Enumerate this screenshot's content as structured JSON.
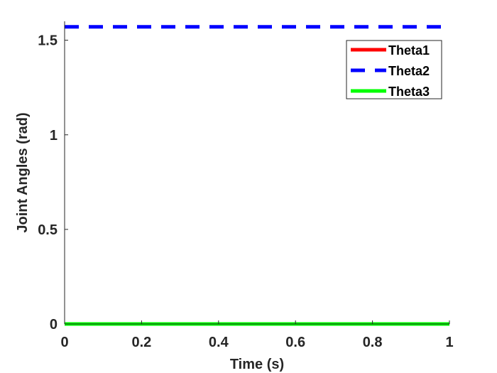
{
  "chart_data": {
    "type": "line",
    "xlabel": "Time (s)",
    "ylabel": "Joint Angles (rad)",
    "xlim": [
      0,
      1
    ],
    "ylim": [
      0,
      1.6
    ],
    "xticks": [
      0,
      0.2,
      0.4,
      0.6,
      0.8,
      1
    ],
    "xtick_labels": [
      "0",
      "0.2",
      "0.4",
      "0.6",
      "0.8",
      "1"
    ],
    "yticks": [
      0,
      0.5,
      1,
      1.5
    ],
    "ytick_labels": [
      "0",
      "0.5",
      "1",
      "1.5"
    ],
    "grid": false,
    "legend_position": "top-right",
    "series": [
      {
        "name": "Theta1",
        "color": "#ff0000",
        "style": "solid",
        "x": [
          0,
          1
        ],
        "y": [
          0,
          0
        ]
      },
      {
        "name": "Theta2",
        "color": "#0000ff",
        "style": "dashed",
        "x": [
          0,
          1
        ],
        "y": [
          1.5708,
          1.5708
        ]
      },
      {
        "name": "Theta3",
        "color": "#00ff00",
        "style": "solid",
        "x": [
          0,
          1
        ],
        "y": [
          0,
          0
        ]
      }
    ]
  }
}
